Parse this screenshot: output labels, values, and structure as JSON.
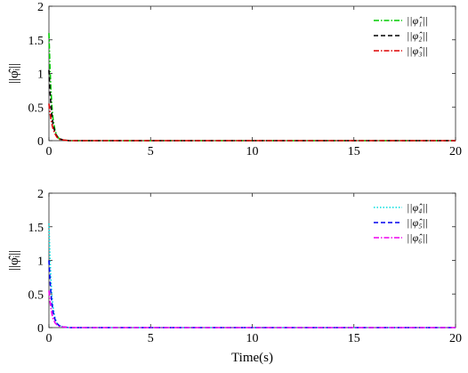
{
  "chart_data": [
    {
      "type": "line",
      "ylabel": "||φ̂ᵢ||",
      "xlabel": "",
      "xlim": [
        0,
        20
      ],
      "ylim": [
        0,
        2
      ],
      "xticks": [
        0,
        5,
        10,
        15,
        20
      ],
      "yticks": [
        0,
        0.5,
        1,
        1.5,
        2
      ],
      "xtick_labels": [
        "0",
        "5",
        "10",
        "15",
        "20"
      ],
      "ytick_labels": [
        "0",
        "0.5",
        "1",
        "1.5",
        "2"
      ],
      "grid": false,
      "legend_position": "top-right",
      "series": [
        {
          "name": "||φ̂₁||",
          "color": "#00cc00",
          "dash": "dashdot",
          "x": [
            0,
            0.05,
            0.1,
            0.15,
            0.2,
            0.3,
            0.4,
            0.5,
            0.7,
            1,
            2,
            5,
            10,
            15,
            20
          ],
          "y": [
            1.6,
            1.1,
            0.75,
            0.5,
            0.33,
            0.15,
            0.07,
            0.03,
            0.01,
            0,
            0,
            0,
            0,
            0,
            0
          ]
        },
        {
          "name": "||φ̂₂||",
          "color": "#000000",
          "dash": "dashed",
          "x": [
            0,
            0.05,
            0.1,
            0.15,
            0.2,
            0.3,
            0.4,
            0.5,
            0.7,
            1,
            2,
            5,
            10,
            15,
            20
          ],
          "y": [
            1.05,
            0.75,
            0.52,
            0.36,
            0.25,
            0.12,
            0.06,
            0.03,
            0.01,
            0,
            0,
            0,
            0,
            0,
            0
          ]
        },
        {
          "name": "||φ̂₃||",
          "color": "#dd0000",
          "dash": "dashdot",
          "x": [
            0,
            0.05,
            0.1,
            0.15,
            0.2,
            0.3,
            0.4,
            0.5,
            0.7,
            1,
            2,
            5,
            10,
            15,
            20
          ],
          "y": [
            0.55,
            0.42,
            0.32,
            0.24,
            0.18,
            0.1,
            0.05,
            0.02,
            0.01,
            0,
            0,
            0,
            0,
            0,
            0
          ]
        }
      ]
    },
    {
      "type": "line",
      "ylabel": "||φ̂ᵢ||",
      "xlabel": "Time(s)",
      "xlim": [
        0,
        20
      ],
      "ylim": [
        0,
        2
      ],
      "xticks": [
        0,
        5,
        10,
        15,
        20
      ],
      "yticks": [
        0,
        0.5,
        1,
        1.5,
        2
      ],
      "xtick_labels": [
        "0",
        "5",
        "10",
        "15",
        "20"
      ],
      "ytick_labels": [
        "0",
        "0.5",
        "1",
        "1.5",
        "2"
      ],
      "grid": false,
      "legend_position": "top-right",
      "series": [
        {
          "name": "||φ̂₄||",
          "color": "#00dddd",
          "dash": "dotted",
          "x": [
            0,
            0.05,
            0.1,
            0.15,
            0.2,
            0.3,
            0.4,
            0.5,
            0.7,
            1,
            2,
            5,
            10,
            15,
            20
          ],
          "y": [
            1.55,
            1.05,
            0.7,
            0.47,
            0.31,
            0.14,
            0.06,
            0.03,
            0.01,
            0,
            0,
            0,
            0,
            0,
            0
          ]
        },
        {
          "name": "||φ̂₅||",
          "color": "#0000ee",
          "dash": "dashed",
          "x": [
            0,
            0.05,
            0.1,
            0.15,
            0.2,
            0.3,
            0.4,
            0.5,
            0.7,
            1,
            2,
            5,
            10,
            15,
            20
          ],
          "y": [
            1.0,
            0.72,
            0.5,
            0.35,
            0.24,
            0.12,
            0.06,
            0.03,
            0.01,
            0,
            0,
            0,
            0,
            0,
            0
          ]
        },
        {
          "name": "||φ̂₆||",
          "color": "#ee00ee",
          "dash": "dashdot",
          "x": [
            0,
            0.05,
            0.1,
            0.15,
            0.2,
            0.3,
            0.4,
            0.5,
            0.7,
            1,
            2,
            5,
            10,
            15,
            20
          ],
          "y": [
            0.55,
            0.4,
            0.29,
            0.2,
            0.14,
            0.07,
            0.04,
            0.02,
            0.01,
            0,
            0,
            0,
            0,
            0,
            0
          ]
        }
      ]
    }
  ]
}
